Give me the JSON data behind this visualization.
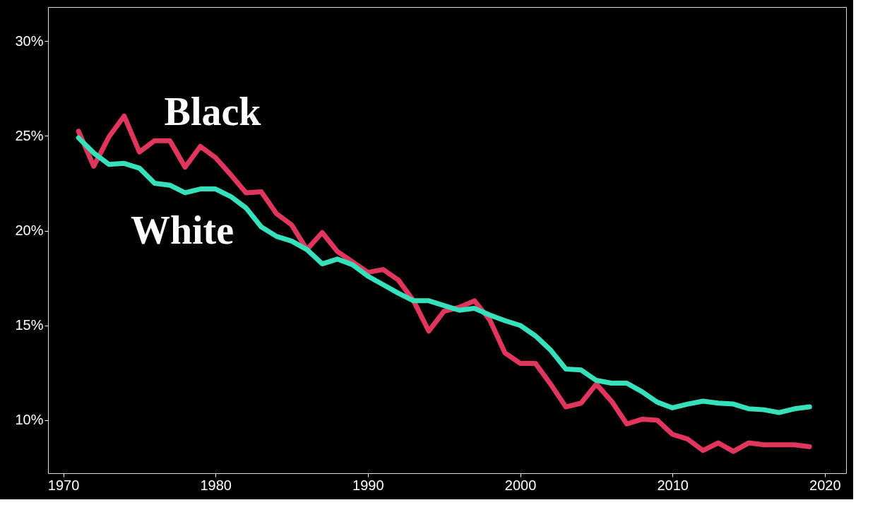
{
  "chart_data": {
    "type": "line",
    "x": [
      1971,
      1972,
      1973,
      1974,
      1975,
      1976,
      1977,
      1978,
      1979,
      1980,
      1981,
      1982,
      1983,
      1984,
      1985,
      1986,
      1987,
      1988,
      1989,
      1990,
      1991,
      1992,
      1993,
      1994,
      1995,
      1996,
      1997,
      1998,
      1999,
      2000,
      2001,
      2002,
      2003,
      2004,
      2005,
      2006,
      2007,
      2008,
      2009,
      2010,
      2011,
      2012,
      2013,
      2014,
      2015,
      2016,
      2017,
      2018,
      2019
    ],
    "series": [
      {
        "name": "Black",
        "color": "#e0365e",
        "values": [
          25.25,
          23.4,
          24.95,
          26.05,
          24.15,
          24.75,
          24.75,
          23.35,
          24.45,
          23.85,
          22.95,
          22.0,
          22.05,
          20.9,
          20.3,
          19.0,
          19.9,
          18.9,
          18.35,
          17.8,
          17.95,
          17.4,
          16.3,
          14.7,
          15.75,
          15.95,
          16.3,
          15.3,
          13.55,
          13.0,
          13.0,
          11.9,
          10.7,
          10.9,
          11.9,
          11.0,
          9.8,
          10.05,
          10.0,
          9.25,
          9.0,
          8.4,
          8.8,
          8.35,
          8.8,
          8.7,
          8.7,
          8.7,
          8.6
        ]
      },
      {
        "name": "White",
        "color": "#35e0bb",
        "values": [
          24.9,
          24.1,
          23.5,
          23.55,
          23.3,
          22.5,
          22.4,
          22.0,
          22.2,
          22.2,
          21.8,
          21.2,
          20.2,
          19.7,
          19.45,
          19.0,
          18.25,
          18.5,
          18.2,
          17.6,
          17.15,
          16.7,
          16.3,
          16.3,
          16.05,
          15.8,
          15.9,
          15.55,
          15.25,
          15.0,
          14.45,
          13.7,
          12.7,
          12.65,
          12.1,
          11.95,
          11.95,
          11.5,
          10.95,
          10.65,
          10.85,
          11.0,
          10.9,
          10.85,
          10.6,
          10.55,
          10.4,
          10.6,
          10.7
        ]
      }
    ],
    "xlim": [
      1969,
      2021.4
    ],
    "xticks": [
      1970,
      1980,
      1990,
      2000,
      2010,
      2020
    ],
    "ylim": [
      7.2,
      31.8
    ],
    "yticks": [
      {
        "value": 10,
        "label": "10%"
      },
      {
        "value": 15,
        "label": "15%"
      },
      {
        "value": 20,
        "label": "20%"
      },
      {
        "value": 25,
        "label": "25%"
      },
      {
        "value": 30,
        "label": "30%"
      }
    ],
    "grid": false,
    "legend": false,
    "line_style": "solid",
    "marker": "none"
  }
}
